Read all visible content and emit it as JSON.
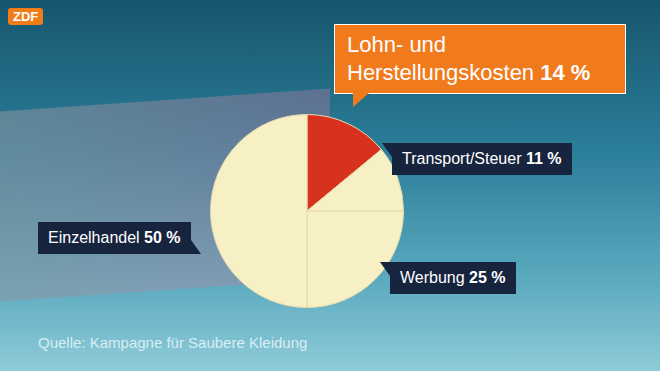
{
  "chart_data": {
    "type": "pie",
    "categories": [
      "Lohn- und Herstellungskosten",
      "Transport/Steuer",
      "Werbung",
      "Einzelhandel"
    ],
    "values": [
      14,
      11,
      25,
      50
    ],
    "value_labels": [
      "14 %",
      "11 %",
      "25 %",
      "50 %"
    ],
    "colors": [
      "#d8321f",
      "#f6f0c4",
      "#f6f0c4",
      "#f6f0c4"
    ],
    "data_labels": true,
    "source": "Quelle: Kampagne für Saubere Kleidung",
    "logo": "ZDF"
  }
}
